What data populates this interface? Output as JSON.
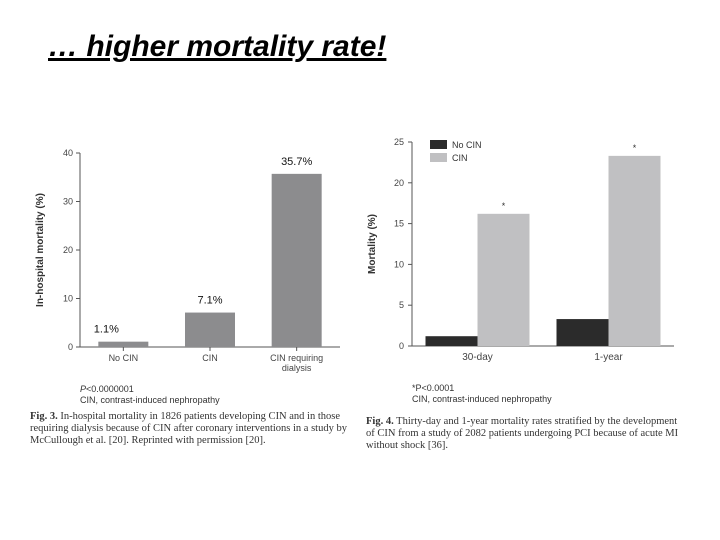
{
  "slide": {
    "title": "… higher mortality rate!"
  },
  "chart_data": [
    {
      "type": "bar",
      "ylabel": "In-hospital mortality (%)",
      "ylim": [
        0,
        40
      ],
      "yticks": [
        "0",
        "10",
        "20",
        "30",
        "40"
      ],
      "categories": [
        "No CIN",
        "CIN",
        "CIN requiring dialysis"
      ],
      "series": [
        {
          "values": [
            1.1,
            7.1,
            35.7
          ],
          "data_labels": [
            "1.1%",
            "7.1%",
            "35.7%"
          ]
        }
      ],
      "bar_color": "#8c8c8e",
      "grid": false,
      "notes": {
        "p_label": "P",
        "p_value": "<0.0000001",
        "abbrev": "CIN, contrast-induced nephropathy"
      },
      "caption": {
        "label": "Fig. 3.",
        "text": "In-hospital mortality in 1826 patients developing CIN and in those requiring dialysis because of CIN after coronary interventions in a study by McCullough et al. [20]. Reprinted with permission [20]."
      }
    },
    {
      "type": "bar",
      "ylabel": "Mortality (%)",
      "ylim": [
        0,
        25
      ],
      "yticks": [
        "0",
        "5",
        "10",
        "15",
        "20",
        "25"
      ],
      "categories": [
        "30-day",
        "1-year"
      ],
      "series": [
        {
          "name": "No CIN",
          "color": "#2b2b2b",
          "values": [
            1.2,
            3.3
          ]
        },
        {
          "name": "CIN",
          "color": "#c0c0c2",
          "values": [
            16.2,
            23.3
          ]
        }
      ],
      "significance_marks": [
        "*",
        "*"
      ],
      "legend": "top-left",
      "grid": false,
      "notes": {
        "p_label": "*P",
        "p_value": "<0.0001",
        "abbrev": "CIN, contrast-induced nephropathy"
      },
      "caption": {
        "label": "Fig. 4.",
        "text": "Thirty-day and 1-year mortality rates stratified by the development of CIN from a study of 2082 patients undergoing PCI because of acute MI without shock [36]."
      }
    }
  ]
}
